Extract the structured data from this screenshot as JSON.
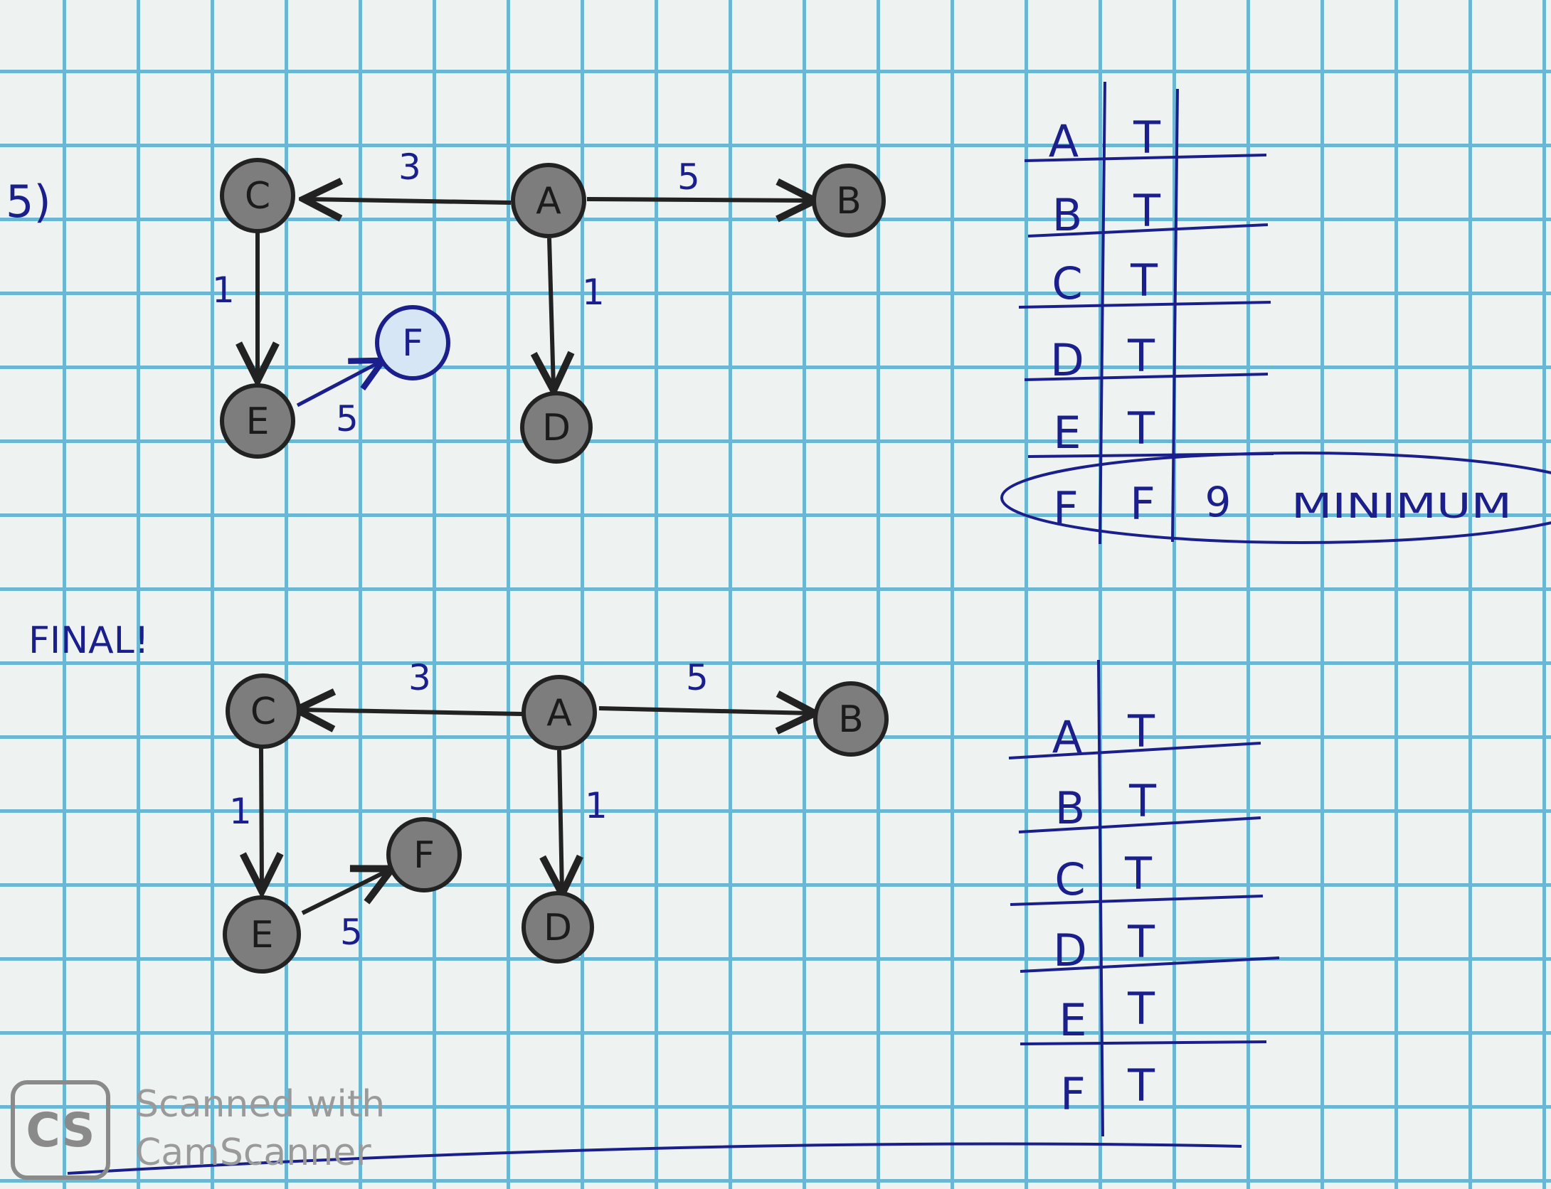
{
  "problem_label": "5)",
  "final_label": "FINAL!",
  "graph1": {
    "nodes": [
      {
        "id": "A",
        "label": "A"
      },
      {
        "id": "B",
        "label": "B"
      },
      {
        "id": "C",
        "label": "C"
      },
      {
        "id": "D",
        "label": "D"
      },
      {
        "id": "E",
        "label": "E"
      },
      {
        "id": "F",
        "label": "F"
      }
    ],
    "edges": [
      {
        "from": "A",
        "to": "C",
        "weight": "3"
      },
      {
        "from": "A",
        "to": "B",
        "weight": "5"
      },
      {
        "from": "C",
        "to": "E",
        "weight": "1"
      },
      {
        "from": "A",
        "to": "D",
        "weight": "1"
      },
      {
        "from": "E",
        "to": "F",
        "weight": "5"
      }
    ]
  },
  "table1": {
    "rows": [
      {
        "node": "A",
        "visited": "T"
      },
      {
        "node": "B",
        "visited": "T"
      },
      {
        "node": "C",
        "visited": "T"
      },
      {
        "node": "D",
        "visited": "T"
      },
      {
        "node": "E",
        "visited": "T"
      },
      {
        "node": "F",
        "visited": "F",
        "distance": "9",
        "note": "MINIMUM"
      }
    ]
  },
  "graph2": {
    "nodes": [
      {
        "id": "A",
        "label": "A"
      },
      {
        "id": "B",
        "label": "B"
      },
      {
        "id": "C",
        "label": "C"
      },
      {
        "id": "D",
        "label": "D"
      },
      {
        "id": "E",
        "label": "E"
      },
      {
        "id": "F",
        "label": "F"
      }
    ],
    "edges": [
      {
        "from": "A",
        "to": "C",
        "weight": "3"
      },
      {
        "from": "A",
        "to": "B",
        "weight": "5"
      },
      {
        "from": "C",
        "to": "E",
        "weight": "1"
      },
      {
        "from": "A",
        "to": "D",
        "weight": "1"
      },
      {
        "from": "E",
        "to": "F",
        "weight": "5"
      }
    ]
  },
  "table2": {
    "rows": [
      {
        "node": "A",
        "visited": "T"
      },
      {
        "node": "B",
        "visited": "T"
      },
      {
        "node": "C",
        "visited": "T"
      },
      {
        "node": "D",
        "visited": "T"
      },
      {
        "node": "E",
        "visited": "T"
      },
      {
        "node": "F",
        "visited": "T"
      }
    ]
  },
  "watermark": {
    "logo_text": "CS",
    "line1": "Scanned with",
    "line2": "CamScanner"
  }
}
